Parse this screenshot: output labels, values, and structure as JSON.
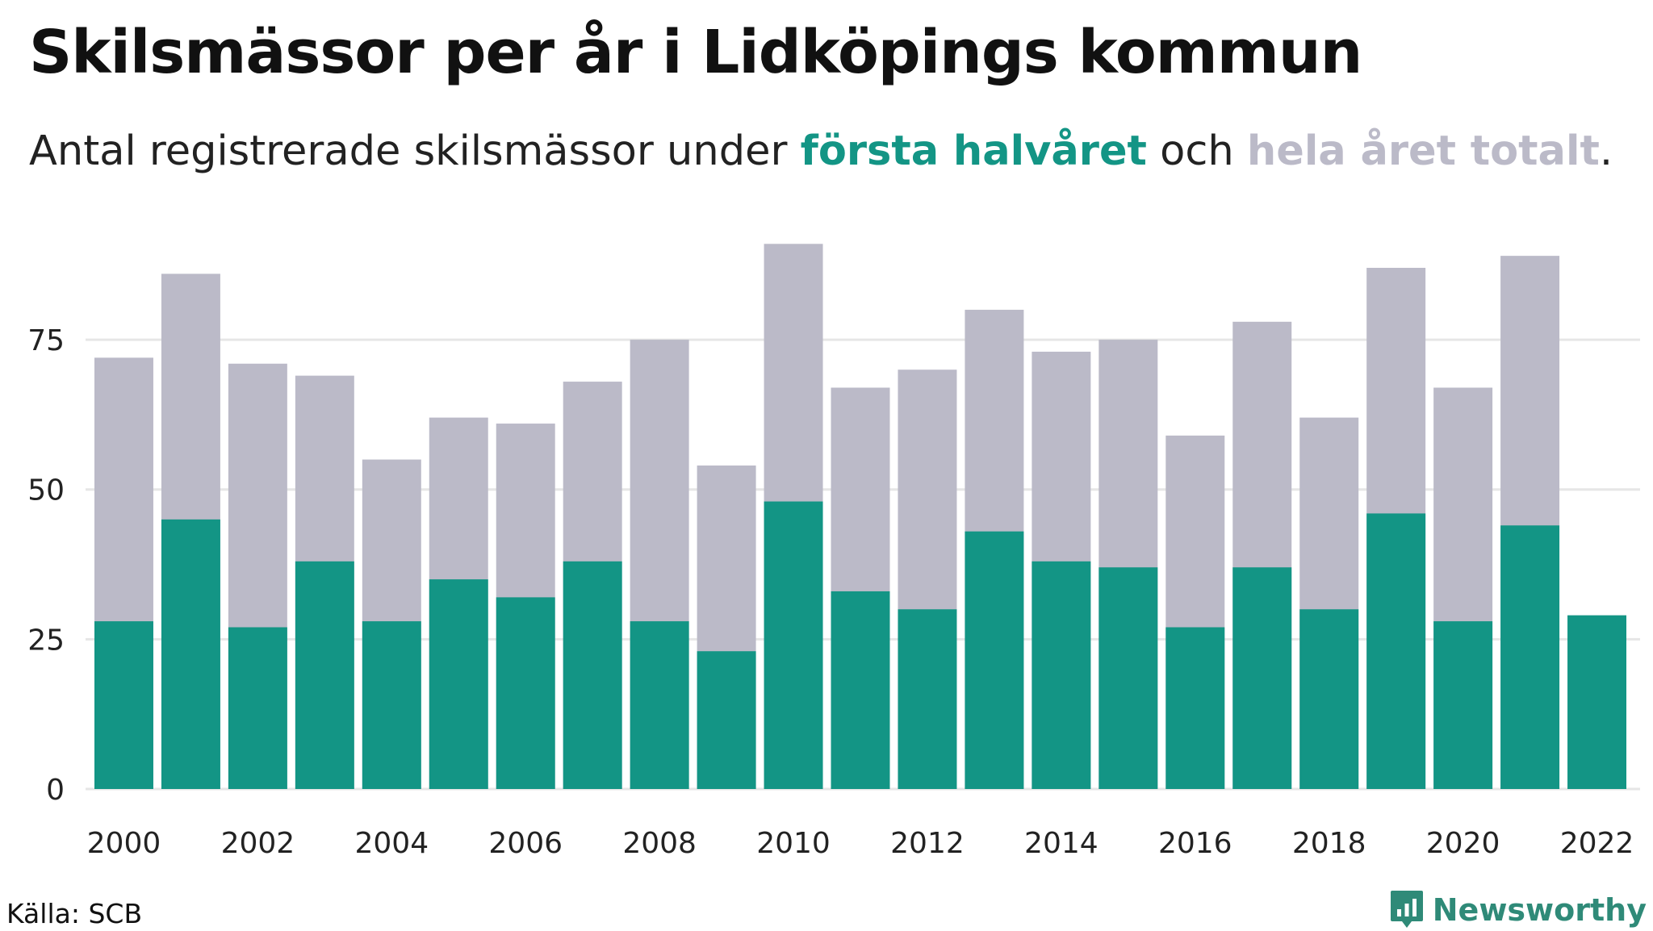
{
  "title": "Skilsmässor per år i Lidköpings kommun",
  "subtitle": {
    "prefix": "Antal registrerade skilsmässor under ",
    "series1_text": "första halvåret",
    "middle": " och ",
    "series2_text": "hela året totalt",
    "suffix": "."
  },
  "colors": {
    "first_half": "#139585",
    "full_year": "#bbbac8",
    "grid": "#e6e6e6",
    "brand": "#2f8a78"
  },
  "chart_data": {
    "type": "bar",
    "stacking": "overlay",
    "categories": [
      "2000",
      "2001",
      "2002",
      "2003",
      "2004",
      "2005",
      "2006",
      "2007",
      "2008",
      "2009",
      "2010",
      "2011",
      "2012",
      "2013",
      "2014",
      "2015",
      "2016",
      "2017",
      "2018",
      "2019",
      "2020",
      "2021",
      "2022"
    ],
    "x_tick_labels": [
      "2000",
      "2002",
      "2004",
      "2006",
      "2008",
      "2010",
      "2012",
      "2014",
      "2016",
      "2018",
      "2020",
      "2022"
    ],
    "series": [
      {
        "name": "hela året totalt",
        "color": "#bbbac8",
        "values": [
          72,
          86,
          71,
          69,
          55,
          62,
          61,
          68,
          75,
          54,
          91,
          67,
          70,
          80,
          73,
          75,
          59,
          78,
          62,
          87,
          67,
          89,
          null
        ]
      },
      {
        "name": "första halvåret",
        "color": "#139585",
        "values": [
          28,
          45,
          27,
          38,
          28,
          35,
          32,
          38,
          28,
          23,
          48,
          33,
          30,
          43,
          38,
          37,
          27,
          37,
          30,
          46,
          28,
          44,
          29
        ]
      }
    ],
    "y_ticks": [
      0,
      25,
      50,
      75
    ],
    "ylim": [
      0,
      94
    ],
    "grid": "horizontal",
    "xlabel": "",
    "ylabel": ""
  },
  "footer": {
    "source": "Källa: SCB",
    "brand": "Newsworthy",
    "brand_icon": "newsworthy-logo-icon"
  }
}
